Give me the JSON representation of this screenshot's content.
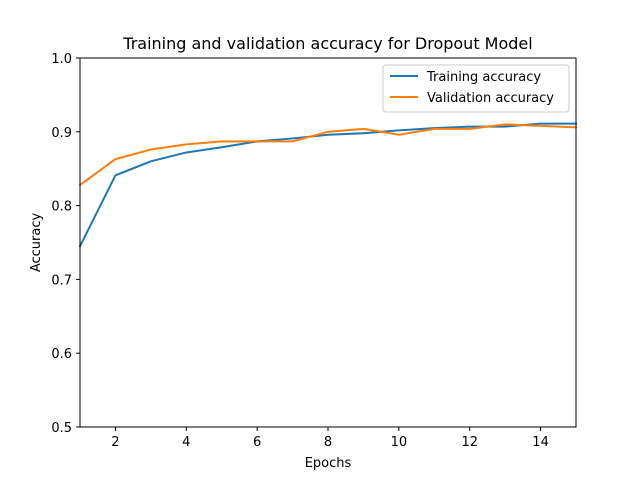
{
  "chart_data": {
    "type": "line",
    "title": "Training and validation accuracy for Dropout Model",
    "xlabel": "Epochs",
    "ylabel": "Accuracy",
    "xlim": [
      1,
      15
    ],
    "ylim": [
      0.5,
      1.0
    ],
    "xticks": [
      2,
      4,
      6,
      8,
      10,
      12,
      14
    ],
    "yticks": [
      0.5,
      0.6,
      0.7,
      0.8,
      0.9,
      1.0
    ],
    "ytick_labels": [
      "0.5",
      "0.6",
      "0.7",
      "0.8",
      "0.9",
      "1.0"
    ],
    "grid": false,
    "legend_position": "top-right",
    "x": [
      1,
      2,
      3,
      4,
      5,
      6,
      7,
      8,
      9,
      10,
      11,
      12,
      13,
      14,
      15
    ],
    "series": [
      {
        "name": "Training accuracy",
        "color": "#1f77b4",
        "values": [
          0.745,
          0.841,
          0.86,
          0.872,
          0.879,
          0.887,
          0.891,
          0.896,
          0.898,
          0.902,
          0.905,
          0.907,
          0.907,
          0.911,
          0.911
        ]
      },
      {
        "name": "Validation accuracy",
        "color": "#ff7f0e",
        "values": [
          0.828,
          0.863,
          0.876,
          0.883,
          0.887,
          0.887,
          0.887,
          0.9,
          0.904,
          0.896,
          0.904,
          0.904,
          0.91,
          0.908,
          0.906
        ]
      }
    ]
  }
}
